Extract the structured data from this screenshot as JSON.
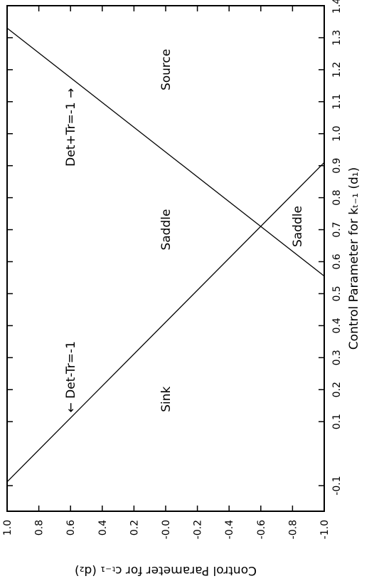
{
  "chart_data": {
    "type": "line",
    "title": "",
    "xlabel": "Control Parameter for k_{t-1}   (d_1)",
    "ylabel": "Control Parameter for c_{t-1}   (d_2)",
    "xlim": [
      -0.18,
      1.4
    ],
    "ylim": [
      -1.0,
      1.0
    ],
    "x_ticks": [
      -0.1,
      0.1,
      0.2,
      0.3,
      0.4,
      0.5,
      0.6,
      0.7,
      0.8,
      0.9,
      1.0,
      1.1,
      1.2,
      1.3,
      1.4
    ],
    "x_tick_labels": [
      "-0.1",
      "0.1",
      "0.2",
      "0.3",
      "0.4",
      "0.5",
      "0.6",
      "0.7",
      "0.8",
      "0.9",
      "1.0",
      "1.1",
      "1.2",
      "1.3",
      "1.4"
    ],
    "y_ticks": [
      1.0,
      0.8,
      0.6,
      0.4,
      0.2,
      0.0,
      -0.2,
      -0.4,
      -0.6,
      -0.8,
      -1.0
    ],
    "y_tick_labels": [
      "1.0",
      "0.8",
      "0.6",
      "0.4",
      "0.2",
      "-0.0",
      "-0.2",
      "-0.4",
      "-0.6",
      "-0.8",
      "-1.0"
    ],
    "orientation": "rotated 90° counterclockwise (printed landscape)",
    "grid": false,
    "series": [
      {
        "name": "Det-Tr=-1",
        "x": [
          -0.088,
          0.91
        ],
        "y": [
          1.0,
          -1.0
        ]
      },
      {
        "name": "Det+Tr=-1",
        "x": [
          1.33,
          0.555
        ],
        "y": [
          1.0,
          -1.0
        ]
      }
    ],
    "annotations": [
      {
        "text": "Source",
        "x": 1.2,
        "y": 0.0
      },
      {
        "text": "Saddle",
        "x": 0.7,
        "y": 0.0
      },
      {
        "text": "Saddle",
        "x": 0.71,
        "y": -0.83
      },
      {
        "text": "Sink",
        "x": 0.17,
        "y": 0.0
      },
      {
        "text": "Det+Tr=-1",
        "arrow": "→",
        "x": 1.02,
        "y": 0.6
      },
      {
        "text": "Det-Tr=-1",
        "arrow": "←",
        "x": 0.24,
        "y": 0.6
      }
    ]
  }
}
